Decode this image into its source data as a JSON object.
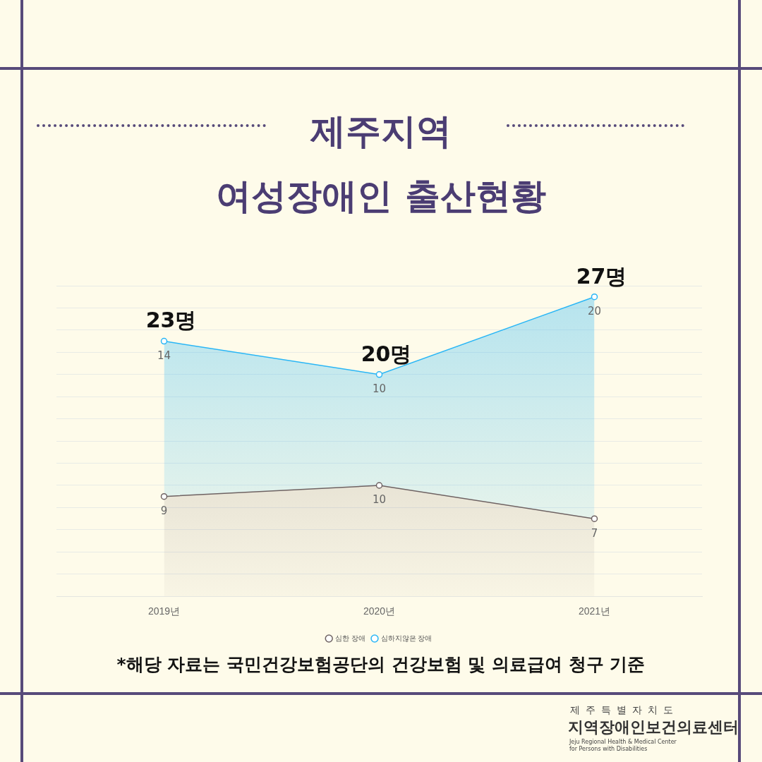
{
  "chart_data": {
    "type": "area",
    "title": "제주지역\n여성장애인 출산현황",
    "categories": [
      "2019년",
      "2020년",
      "2021년"
    ],
    "series": [
      {
        "name": "심한 장애",
        "color": "#6e6262",
        "values": [
          9,
          10,
          7
        ]
      },
      {
        "name": "심하지않은 장애",
        "color": "#29b6f6",
        "values": [
          14,
          10,
          20
        ]
      }
    ],
    "stacked": true,
    "data_labels": true,
    "totals": [
      "23명",
      "20명",
      "27명"
    ],
    "ylim": [
      0,
      28
    ],
    "yticks": [
      {
        "value": 0,
        "label": null
      },
      {
        "value": 2,
        "label": null
      },
      {
        "value": 4,
        "label": null
      },
      {
        "value": 6,
        "label": null
      },
      {
        "value": 8,
        "label": null
      },
      {
        "value": 10,
        "label": null
      },
      {
        "value": 12,
        "label": null
      },
      {
        "value": 14,
        "label": null
      },
      {
        "value": 16,
        "label": null
      },
      {
        "value": 18,
        "label": null
      },
      {
        "value": 20,
        "label": null
      },
      {
        "value": 22,
        "label": null
      },
      {
        "value": 24,
        "label": null
      },
      {
        "value": 26,
        "label": null
      },
      {
        "value": 28,
        "label": null
      }
    ],
    "tick_labels": "x",
    "grid": "y",
    "legend": "bottom",
    "marker": "circle",
    "line_style": "solid",
    "annotations": [
      "*해당 자료는 국민건강보험공단의 건강보험 및 의료급여 청구 기준",
      "제주특별자치도",
      "지역장애인보건의료센터",
      "Jeju Regional Health & Medical Center\nfor Persons with Disabilities"
    ]
  }
}
